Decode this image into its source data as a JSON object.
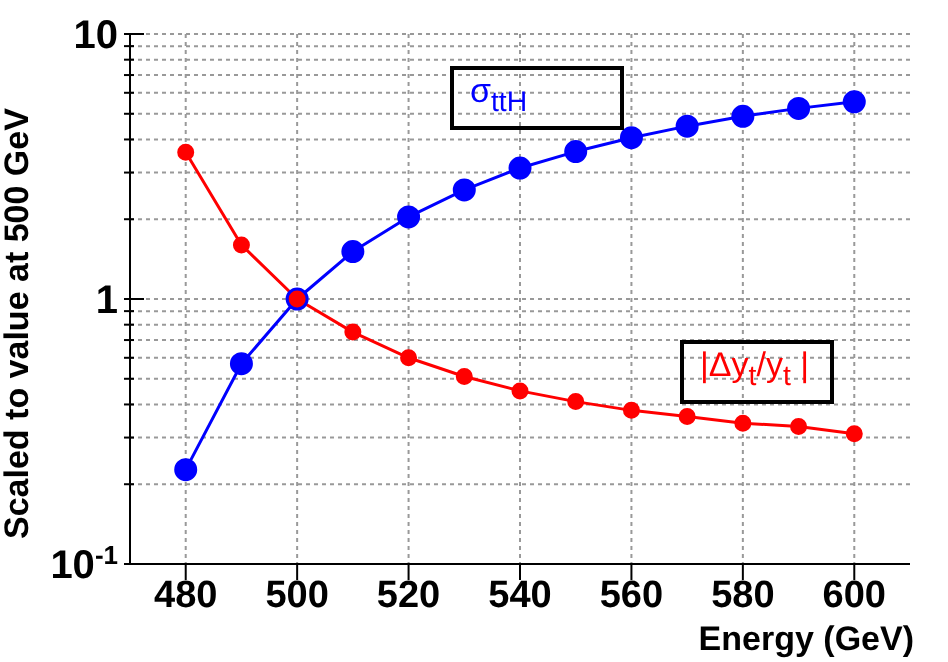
{
  "chart_data": {
    "type": "line",
    "xlabel": "Energy (GeV)",
    "ylabel": "Scaled to value at 500 GeV",
    "x": [
      480,
      490,
      500,
      510,
      520,
      530,
      540,
      550,
      560,
      570,
      580,
      590,
      600
    ],
    "series": [
      {
        "name": "σ$_{ttH}$",
        "color": "#0000ff",
        "values": [
          0.227,
          0.57,
          1,
          1.51,
          2.04,
          2.58,
          3.12,
          3.6,
          4.06,
          4.49,
          4.89,
          5.24,
          5.55
        ]
      },
      {
        "name": "|Δy$_{t}$/y$_{t}$ |",
        "color": "#ff0000",
        "values": [
          3.58,
          1.6,
          1,
          0.75,
          0.6,
          0.51,
          0.45,
          0.41,
          0.38,
          0.36,
          0.34,
          0.33,
          0.31
        ]
      }
    ],
    "xlim": [
      470,
      610
    ],
    "xticks": [
      480,
      500,
      520,
      540,
      560,
      580,
      600
    ],
    "ylim": [
      0.1,
      10
    ],
    "yticks": [
      {
        "value": 0.1,
        "label": "10$^{-1}$"
      },
      {
        "value": 0.2,
        "label": null
      },
      {
        "value": 0.3,
        "label": null
      },
      {
        "value": 0.4,
        "label": null
      },
      {
        "value": 0.5,
        "label": null
      },
      {
        "value": 0.6,
        "label": null
      },
      {
        "value": 0.7,
        "label": null
      },
      {
        "value": 0.8,
        "label": null
      },
      {
        "value": 0.9,
        "label": null
      },
      1,
      {
        "value": 2,
        "label": null
      },
      {
        "value": 3,
        "label": null
      },
      {
        "value": 4,
        "label": null
      },
      {
        "value": 5,
        "label": null
      },
      {
        "value": 6,
        "label": null
      },
      {
        "value": 7,
        "label": null
      },
      {
        "value": 8,
        "label": null
      },
      {
        "value": 9,
        "label": null
      },
      10
    ],
    "log": "y",
    "grid": true,
    "legend": false,
    "marker": "circle",
    "line_style": "solid"
  }
}
